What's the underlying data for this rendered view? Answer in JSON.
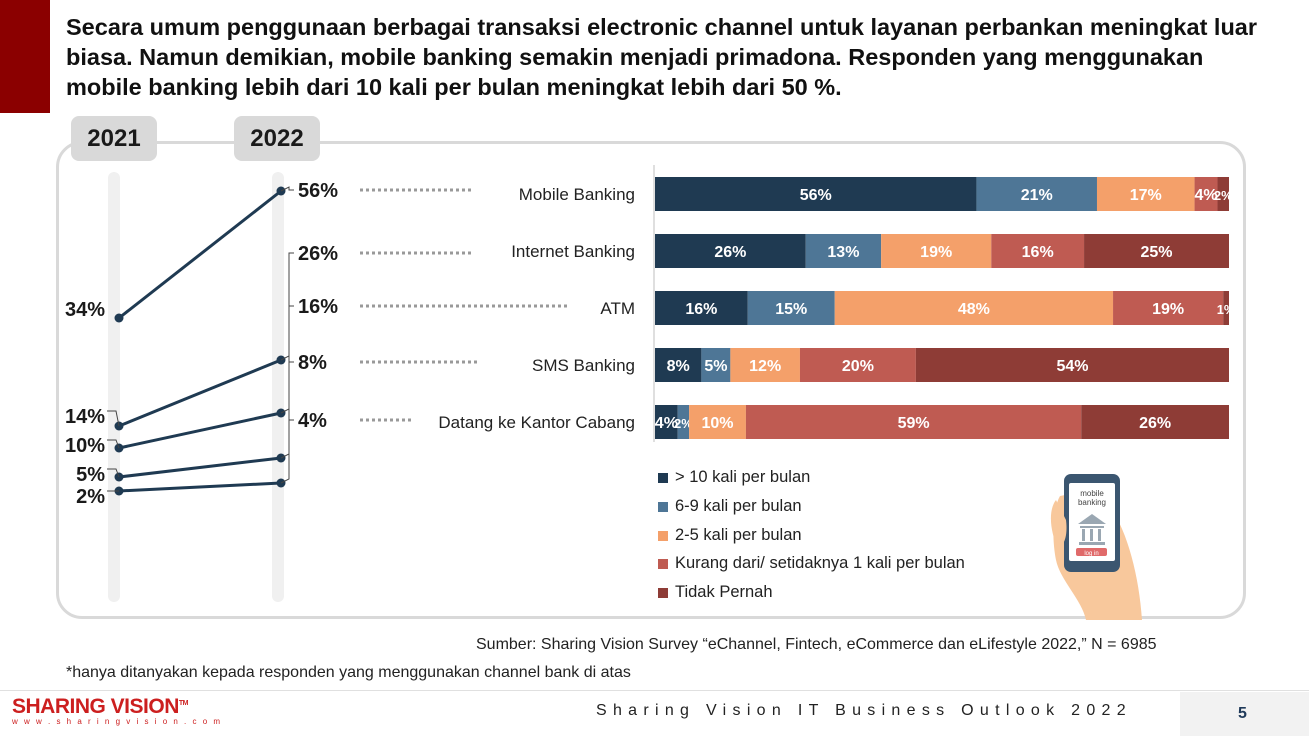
{
  "headline": "Secara umum penggunaan berbagai transaksi electronic channel untuk layanan perbankan meningkat luar biasa. Namun demikian, mobile banking semakin menjadi primadona. Responden yang menggunakan mobile banking lebih dari 10 kali per bulan meningkat lebih dari 50 %.",
  "colors": {
    "accent": "#8b0000",
    "navy": "#1f3a52",
    "steel": "#4e7696",
    "peach": "#f4a06a",
    "rose": "#bf5b52",
    "maroon": "#8e3c36"
  },
  "chart_data": [
    {
      "type": "line",
      "x": [
        "2021",
        "2022"
      ],
      "series": [
        {
          "values": [
            34,
            56
          ],
          "labels": [
            "34%",
            "56%"
          ]
        },
        {
          "values": [
            14,
            26
          ],
          "labels": [
            "14%",
            "26%"
          ]
        },
        {
          "values": [
            10,
            16
          ],
          "labels": [
            "10%",
            "16%"
          ]
        },
        {
          "values": [
            5,
            8
          ],
          "labels": [
            "5%",
            "8%"
          ]
        },
        {
          "values": [
            2,
            4
          ],
          "labels": [
            "2%",
            "4%"
          ]
        }
      ]
    },
    {
      "type": "bar",
      "orientation": "horizontal",
      "stacked": true,
      "categories": [
        "Mobile Banking",
        "Internet Banking",
        "ATM",
        "SMS Banking",
        "Datang ke Kantor Cabang"
      ],
      "series": [
        {
          "name": "> 10 kali per bulan",
          "color": "#1f3a52",
          "values": [
            56,
            26,
            16,
            8,
            4
          ]
        },
        {
          "name": "6-9 kali per bulan",
          "color": "#4e7696",
          "values": [
            21,
            13,
            15,
            5,
            2
          ]
        },
        {
          "name": "2-5 kali per bulan",
          "color": "#f4a06a",
          "values": [
            17,
            19,
            48,
            12,
            10
          ]
        },
        {
          "name": "Kurang dari/ setidaknya 1 kali per bulan",
          "color": "#bf5b52",
          "values": [
            4,
            16,
            19,
            20,
            59
          ]
        },
        {
          "name": "Tidak Pernah",
          "color": "#8e3c36",
          "values": [
            2,
            25,
            1,
            54,
            26
          ]
        }
      ],
      "value_labels": [
        [
          "56%",
          "21%",
          "17%",
          "4%",
          "2%"
        ],
        [
          "26%",
          "13%",
          "19%",
          "16%",
          "25%"
        ],
        [
          "16%",
          "15%",
          "48%",
          "19%",
          "1%"
        ],
        [
          "8%",
          "5%",
          "12%",
          "20%",
          "54%"
        ],
        [
          "4%",
          "2%",
          "10%",
          "59%",
          "26%"
        ]
      ],
      "legend": "bottom"
    }
  ],
  "years": [
    "2021",
    "2022"
  ],
  "illustration": {
    "phone_text": "mobile banking",
    "button_text": "log in"
  },
  "source": "Sumber: Sharing Vision Survey “eChannel, Fintech, eCommerce dan eLifestyle 2022,” N = 6985",
  "footnote": "*hanya ditanyakan kepada responden yang menggunakan channel bank di atas",
  "footer": {
    "logo": "SHARING VISION",
    "logo_tm": "TM",
    "logo_url": "w w w . s h a r i n g v i s i o n . c o m",
    "title": "Sharing Vision IT Business Outlook 2022",
    "page": "5"
  }
}
